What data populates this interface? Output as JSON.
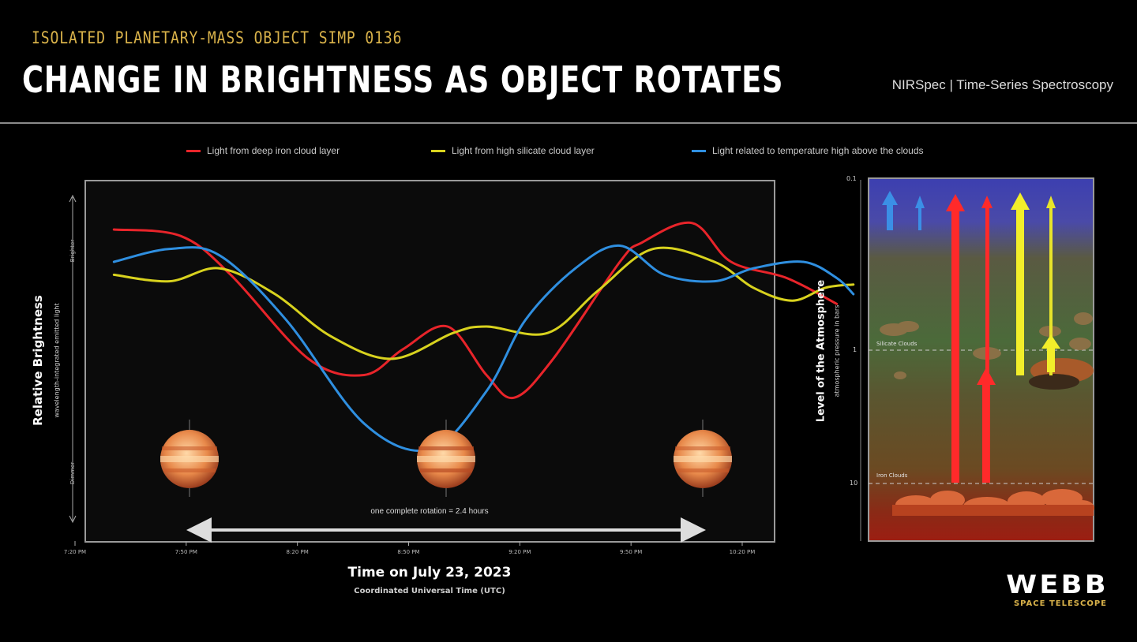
{
  "header": {
    "kicker": "ISOLATED PLANETARY-MASS OBJECT SIMP 0136",
    "headline": "CHANGE IN BRIGHTNESS AS OBJECT ROTATES",
    "instrument": "NIRSpec | Time-Series Spectroscopy"
  },
  "legend": [
    {
      "label": "Light from deep iron cloud layer",
      "color": "#e8242a"
    },
    {
      "label": "Light from high silicate cloud layer",
      "color": "#d8d21e"
    },
    {
      "label": "Light related to temperature high above the clouds",
      "color": "#2f8fe0"
    }
  ],
  "main_chart": {
    "ylabel": "Relative Brightness",
    "ysub": "wavelength-integrated emitted light",
    "bright_label": "Brighter",
    "dim_label": "Dimmer",
    "xlabel": "Time on July 23, 2023",
    "xsub": "Coordinated Universal Time (UTC)",
    "rotation_label": "one complete rotation = 2.4 hours"
  },
  "chart_data": {
    "type": "line",
    "x_tick_labels": [
      "7:20 PM",
      "7:50 PM",
      "8:20 PM",
      "8:50 PM",
      "9:20 PM",
      "9:50 PM",
      "10:20 PM"
    ],
    "x": [
      0,
      0.5,
      1.0,
      1.5,
      2.0,
      2.5,
      3.0,
      3.5,
      4.0,
      4.5,
      5.0,
      5.5,
      6.0
    ],
    "ylim": [
      0,
      100
    ],
    "series": [
      {
        "name": "Light from deep iron cloud layer",
        "color": "#e8242a",
        "points": [
          [
            0.35,
            90
          ],
          [
            0.95,
            88
          ],
          [
            1.4,
            76
          ],
          [
            2.1,
            50
          ],
          [
            2.6,
            45
          ],
          [
            2.95,
            53
          ],
          [
            3.35,
            60
          ],
          [
            3.7,
            45
          ],
          [
            3.95,
            38
          ],
          [
            4.3,
            50
          ],
          [
            4.9,
            80
          ],
          [
            5.1,
            86
          ],
          [
            5.55,
            92
          ],
          [
            5.9,
            80
          ],
          [
            6.4,
            75
          ],
          [
            6.85,
            67
          ]
        ]
      },
      {
        "name": "Light from high silicate cloud layer",
        "color": "#d8d21e",
        "points": [
          [
            0.35,
            76
          ],
          [
            0.85,
            74
          ],
          [
            1.3,
            78
          ],
          [
            1.8,
            70
          ],
          [
            2.3,
            57
          ],
          [
            2.85,
            50
          ],
          [
            3.4,
            58
          ],
          [
            3.7,
            60
          ],
          [
            4.25,
            58
          ],
          [
            4.7,
            71
          ],
          [
            5.2,
            84
          ],
          [
            5.75,
            80
          ],
          [
            6.1,
            72
          ],
          [
            6.45,
            68
          ],
          [
            6.75,
            72
          ],
          [
            7.0,
            73
          ]
        ]
      },
      {
        "name": "Light related to temperature high above the clouds",
        "color": "#2f8fe0",
        "points": [
          [
            0.35,
            80
          ],
          [
            0.85,
            84
          ],
          [
            1.3,
            82
          ],
          [
            1.9,
            62
          ],
          [
            2.6,
            30
          ],
          [
            3.2,
            22
          ],
          [
            3.7,
            40
          ],
          [
            4.05,
            62
          ],
          [
            4.5,
            78
          ],
          [
            4.9,
            85
          ],
          [
            5.3,
            76
          ],
          [
            5.75,
            74
          ],
          [
            6.1,
            78
          ],
          [
            6.55,
            80
          ],
          [
            6.85,
            75
          ],
          [
            7.0,
            70
          ]
        ]
      }
    ]
  },
  "atmosphere": {
    "ylabel": "Level of the Atmosphere",
    "ysub": "atmospheric pressure in bars",
    "pressure_ticks": [
      "0.1",
      "1",
      "10"
    ],
    "silicate_label": "Silicate Clouds",
    "iron_label": "Iron Clouds"
  },
  "branding": {
    "name": "WEBB",
    "sub": "SPACE TELESCOPE"
  }
}
